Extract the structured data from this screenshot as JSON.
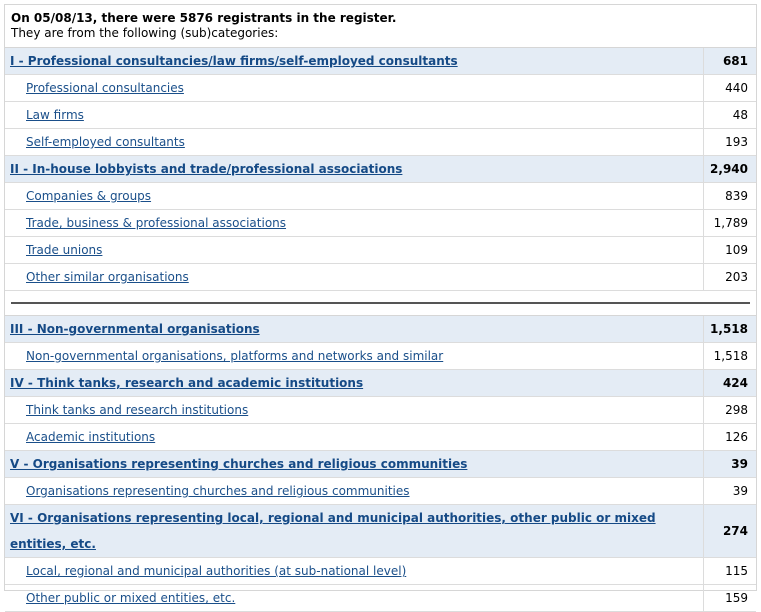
{
  "intro": {
    "line1": "On 05/08/13, there were 5876 registrants in the register.",
    "line2": "They are from the following (sub)categories:"
  },
  "section1": [
    {
      "type": "category",
      "label": "I - Professional consultancies/law firms/self-employed consultants",
      "count": "681"
    },
    {
      "type": "sub",
      "label": "Professional consultancies",
      "count": "440"
    },
    {
      "type": "sub",
      "label": "Law firms",
      "count": "48"
    },
    {
      "type": "sub",
      "label": "Self-employed consultants",
      "count": "193"
    },
    {
      "type": "category",
      "label": "II - In-house lobbyists and trade/professional associations",
      "count": "2,940"
    },
    {
      "type": "sub",
      "label": "Companies & groups",
      "count": "839"
    },
    {
      "type": "sub",
      "label": "Trade, business & professional associations",
      "count": "1,789"
    },
    {
      "type": "sub",
      "label": "Trade unions",
      "count": "109"
    },
    {
      "type": "sub",
      "label": "Other similar organisations",
      "count": "203"
    }
  ],
  "section2": [
    {
      "type": "category",
      "label": "III - Non-governmental organisations",
      "count": "1,518"
    },
    {
      "type": "sub",
      "label": "Non-governmental organisations, platforms and networks and similar",
      "count": "1,518"
    },
    {
      "type": "category",
      "label": "IV - Think tanks, research and academic institutions",
      "count": "424"
    },
    {
      "type": "sub",
      "label": "Think tanks and research institutions",
      "count": "298"
    },
    {
      "type": "sub",
      "label": "Academic institutions",
      "count": "126"
    },
    {
      "type": "category",
      "label": "V - Organisations representing churches and religious communities",
      "count": "39"
    },
    {
      "type": "sub",
      "label": "Organisations representing churches and religious communities",
      "count": "39"
    },
    {
      "type": "category",
      "label": "VI - Organisations representing local, regional and municipal authorities, other public or mixed entities, etc.",
      "count": "274"
    },
    {
      "type": "sub",
      "label": "Local, regional and municipal authorities (at sub-national level)",
      "count": "115"
    },
    {
      "type": "sub",
      "label": "Other public or mixed entities, etc.",
      "count": "159"
    }
  ]
}
